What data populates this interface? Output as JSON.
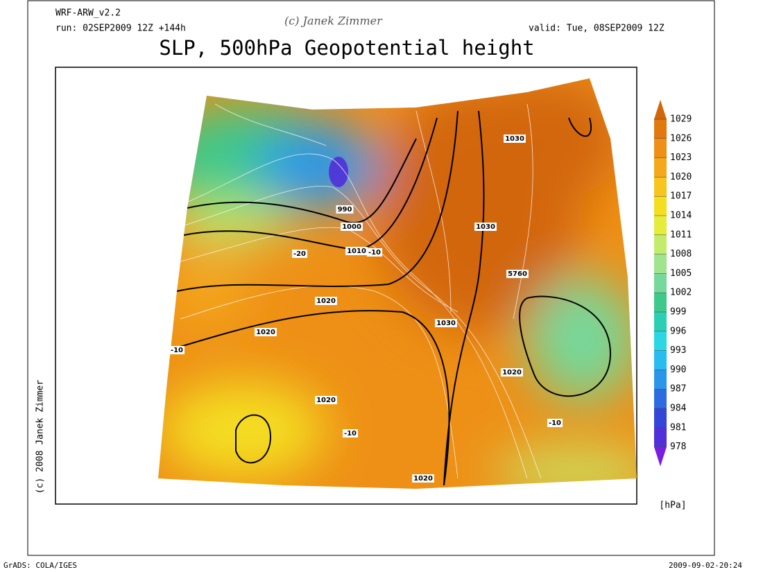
{
  "header": {
    "model": "WRF-ARW_v2.2",
    "run": "run: 02SEP2009 12Z +144h",
    "credit": "(c) Janek Zimmer",
    "valid": "valid: Tue, 08SEP2009 12Z",
    "title": "SLP, 500hPa Geopotential height"
  },
  "colorbar": {
    "ticks": [
      1029,
      1026,
      1023,
      1020,
      1017,
      1014,
      1011,
      1008,
      1005,
      1002,
      999,
      996,
      993,
      990,
      987,
      984,
      981,
      978
    ],
    "colors": [
      "#d2660a",
      "#e2790f",
      "#ee9016",
      "#f4a81e",
      "#f8c41f",
      "#f4de22",
      "#e4ec3c",
      "#c4ec6c",
      "#a0e48e",
      "#76d89a",
      "#3ec98a",
      "#2ccfb4",
      "#2cd6e2",
      "#28bcf0",
      "#2a96ea",
      "#2c6ce0",
      "#3446d8",
      "#5030d8",
      "#7a1ee0"
    ],
    "unit": "[hPa]"
  },
  "contour_labels": [
    "990",
    "1000",
    "1010",
    "-10",
    "-20",
    "1020",
    "1020",
    "-10",
    "1020",
    "-10",
    "1020",
    "1030",
    "1030",
    "5760",
    "1030",
    "1020",
    "-10"
  ],
  "side_credit": "(c) 2008 Janek Zimmer",
  "footer": {
    "left": "GrADS: COLA/IGES",
    "right": "2009-09-02-20:24"
  }
}
